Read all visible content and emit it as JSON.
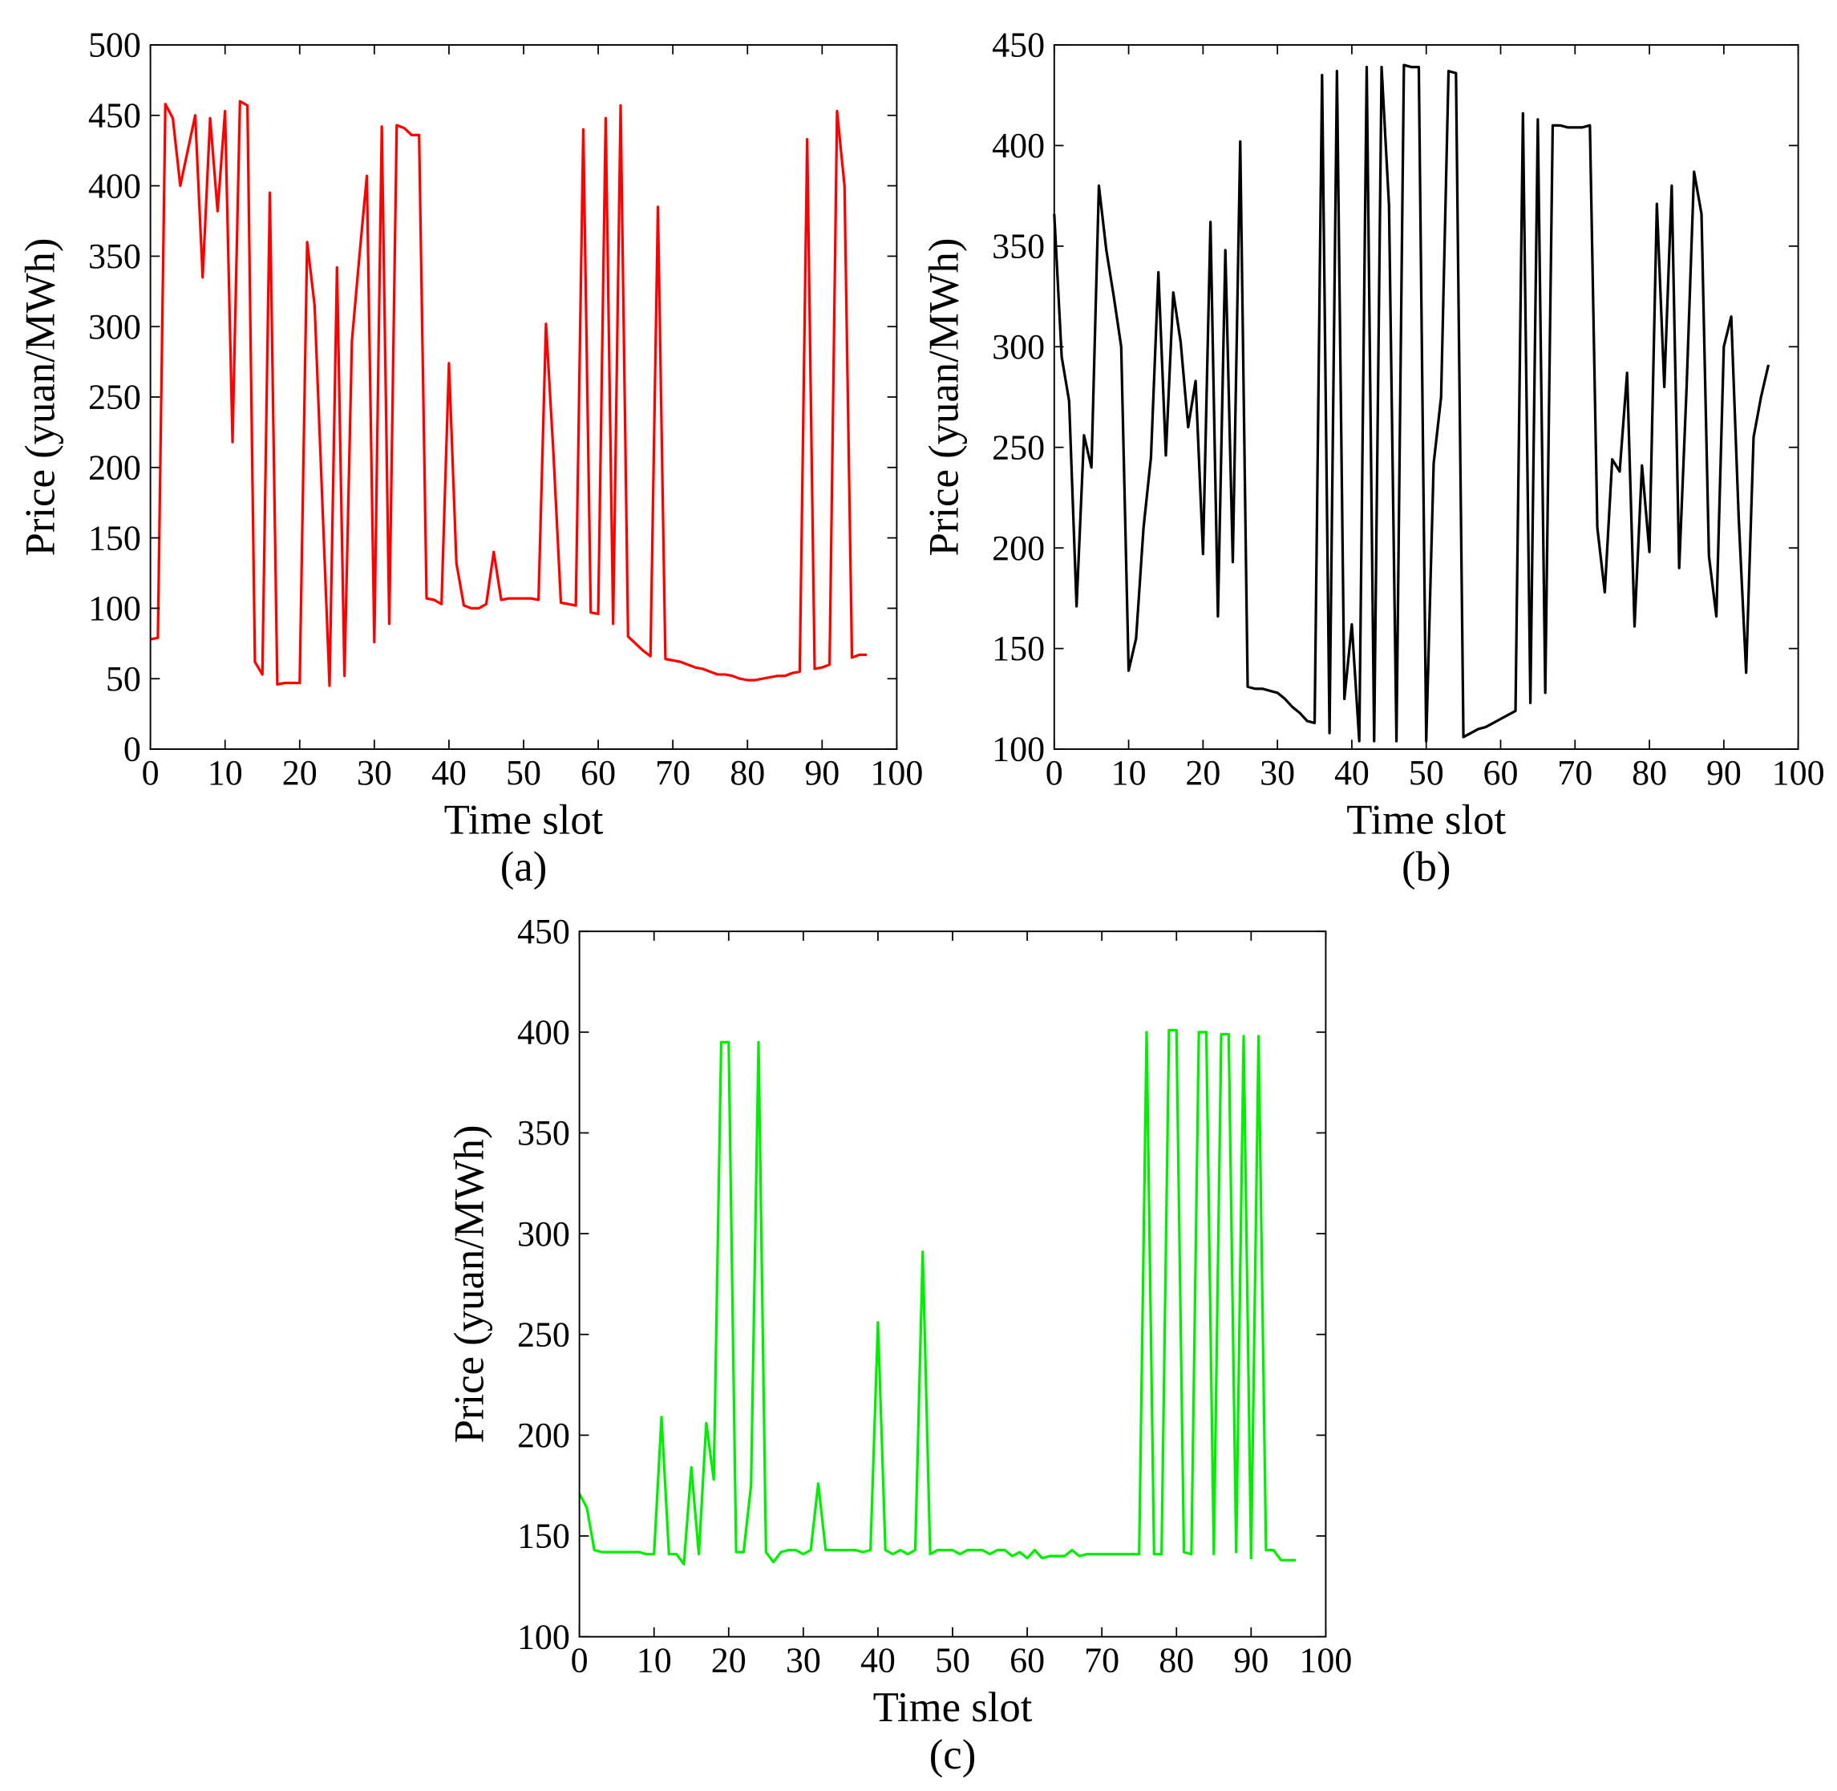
{
  "chart_data": [
    {
      "type": "line",
      "label": "(a)",
      "x_label": "Time slot",
      "y_label": "Price (yuan/MWh)",
      "x": [
        0,
        1,
        2,
        3,
        4,
        5,
        6,
        7,
        8,
        9,
        10,
        11,
        12,
        13,
        14,
        15,
        16,
        17,
        18,
        19,
        20,
        21,
        22,
        23,
        24,
        25,
        26,
        27,
        28,
        29,
        30,
        31,
        32,
        33,
        34,
        35,
        36,
        37,
        38,
        39,
        40,
        41,
        42,
        43,
        44,
        45,
        46,
        47,
        48,
        49,
        50,
        51,
        52,
        53,
        54,
        55,
        56,
        57,
        58,
        59,
        60,
        61,
        62,
        63,
        64,
        65,
        66,
        67,
        68,
        69,
        70,
        71,
        72,
        73,
        74,
        75,
        76,
        77,
        78,
        79,
        80,
        81,
        82,
        83,
        84,
        85,
        86,
        87,
        88,
        89,
        90,
        91,
        92,
        93,
        94,
        95,
        96
      ],
      "series": [
        {
          "color": "#ff0000",
          "values": [
            78,
            79,
            458,
            448,
            400,
            425,
            450,
            335,
            448,
            382,
            453,
            218,
            460,
            457,
            62,
            53,
            395,
            46,
            47,
            47,
            47,
            360,
            315,
            180,
            45,
            342,
            52,
            290,
            350,
            407,
            76,
            442,
            89,
            443,
            441,
            436,
            436,
            107,
            106,
            103,
            274,
            132,
            102,
            100,
            100,
            103,
            140,
            106,
            107,
            107,
            107,
            107,
            106,
            302,
            210,
            104,
            103,
            102,
            440,
            97,
            96,
            448,
            89,
            457,
            80,
            75,
            70,
            66,
            385,
            64,
            63,
            62,
            60,
            58,
            57,
            55,
            53,
            53,
            52,
            50,
            49,
            49,
            50,
            51,
            52,
            52,
            54,
            55,
            433,
            57,
            58,
            60,
            453,
            400,
            65,
            67,
            67
          ]
        }
      ],
      "xlim": [
        0,
        100
      ],
      "xticks": [
        0,
        10,
        20,
        30,
        40,
        50,
        60,
        70,
        80,
        90,
        100
      ],
      "ylim": [
        0,
        500
      ],
      "yticks": [
        0,
        50,
        100,
        150,
        200,
        250,
        300,
        350,
        400,
        450,
        500
      ]
    },
    {
      "type": "line",
      "label": "(b)",
      "x_label": "Time slot",
      "y_label": "Price (yuan/MWh)",
      "x": [
        0,
        1,
        2,
        3,
        4,
        5,
        6,
        7,
        8,
        9,
        10,
        11,
        12,
        13,
        14,
        15,
        16,
        17,
        18,
        19,
        20,
        21,
        22,
        23,
        24,
        25,
        26,
        27,
        28,
        29,
        30,
        31,
        32,
        33,
        34,
        35,
        36,
        37,
        38,
        39,
        40,
        41,
        42,
        43,
        44,
        45,
        46,
        47,
        48,
        49,
        50,
        51,
        52,
        53,
        54,
        55,
        56,
        57,
        58,
        59,
        60,
        61,
        62,
        63,
        64,
        65,
        66,
        67,
        68,
        69,
        70,
        71,
        72,
        73,
        74,
        75,
        76,
        77,
        78,
        79,
        80,
        81,
        82,
        83,
        84,
        85,
        86,
        87,
        88,
        89,
        90,
        91,
        92,
        93,
        94,
        95,
        96
      ],
      "series": [
        {
          "color": "#000000",
          "values": [
            366,
            295,
            273,
            171,
            256,
            240,
            380,
            348,
            325,
            300,
            139,
            155,
            210,
            245,
            337,
            246,
            327,
            302,
            260,
            283,
            197,
            362,
            166,
            348,
            193,
            402,
            131,
            130,
            130,
            129,
            128,
            125,
            121,
            118,
            114,
            113,
            435,
            108,
            437,
            125,
            162,
            104,
            439,
            104,
            439,
            370,
            104,
            440,
            439,
            439,
            104,
            242,
            275,
            437,
            436,
            106,
            108,
            110,
            111,
            113,
            115,
            117,
            119,
            416,
            123,
            413,
            128,
            410,
            410,
            409,
            409,
            409,
            410,
            210,
            178,
            244,
            238,
            287,
            161,
            241,
            198,
            371,
            280,
            380,
            190,
            280,
            387,
            366,
            196,
            166,
            300,
            315,
            215,
            138,
            255,
            275,
            291
          ]
        }
      ],
      "xlim": [
        0,
        100
      ],
      "xticks": [
        0,
        10,
        20,
        30,
        40,
        50,
        60,
        70,
        80,
        90,
        100
      ],
      "ylim": [
        100,
        450
      ],
      "yticks": [
        100,
        150,
        200,
        250,
        300,
        350,
        400,
        450
      ]
    },
    {
      "type": "line",
      "label": "(c)",
      "x_label": "Time slot",
      "y_label": "Price (yuan/MWh)",
      "x": [
        0,
        1,
        2,
        3,
        4,
        5,
        6,
        7,
        8,
        9,
        10,
        11,
        12,
        13,
        14,
        15,
        16,
        17,
        18,
        19,
        20,
        21,
        22,
        23,
        24,
        25,
        26,
        27,
        28,
        29,
        30,
        31,
        32,
        33,
        34,
        35,
        36,
        37,
        38,
        39,
        40,
        41,
        42,
        43,
        44,
        45,
        46,
        47,
        48,
        49,
        50,
        51,
        52,
        53,
        54,
        55,
        56,
        57,
        58,
        59,
        60,
        61,
        62,
        63,
        64,
        65,
        66,
        67,
        68,
        69,
        70,
        71,
        72,
        73,
        74,
        75,
        76,
        77,
        78,
        79,
        80,
        81,
        82,
        83,
        84,
        85,
        86,
        87,
        88,
        89,
        90,
        91,
        92,
        93,
        94,
        95,
        96
      ],
      "series": [
        {
          "color": "#00ee00",
          "values": [
            171,
            164,
            143,
            142,
            142,
            142,
            142,
            142,
            142,
            141,
            141,
            209,
            141,
            141,
            136,
            184,
            141,
            206,
            178,
            395,
            395,
            142,
            142,
            175,
            395,
            142,
            137,
            142,
            143,
            143,
            141,
            143,
            176,
            143,
            143,
            143,
            143,
            143,
            142,
            143,
            256,
            143,
            141,
            143,
            141,
            143,
            291,
            141,
            143,
            143,
            143,
            141,
            143,
            143,
            143,
            141,
            143,
            143,
            140,
            142,
            139,
            143,
            139,
            140,
            140,
            140,
            143,
            140,
            141,
            141,
            141,
            141,
            141,
            141,
            141,
            141,
            400,
            141,
            141,
            401,
            401,
            142,
            141,
            400,
            400,
            141,
            399,
            399,
            142,
            398,
            139,
            398,
            143,
            143,
            138,
            138,
            138
          ]
        }
      ],
      "xlim": [
        0,
        100
      ],
      "xticks": [
        0,
        10,
        20,
        30,
        40,
        50,
        60,
        70,
        80,
        90,
        100
      ],
      "ylim": [
        100,
        450
      ],
      "yticks": [
        100,
        150,
        200,
        250,
        300,
        350,
        400,
        450
      ]
    }
  ]
}
